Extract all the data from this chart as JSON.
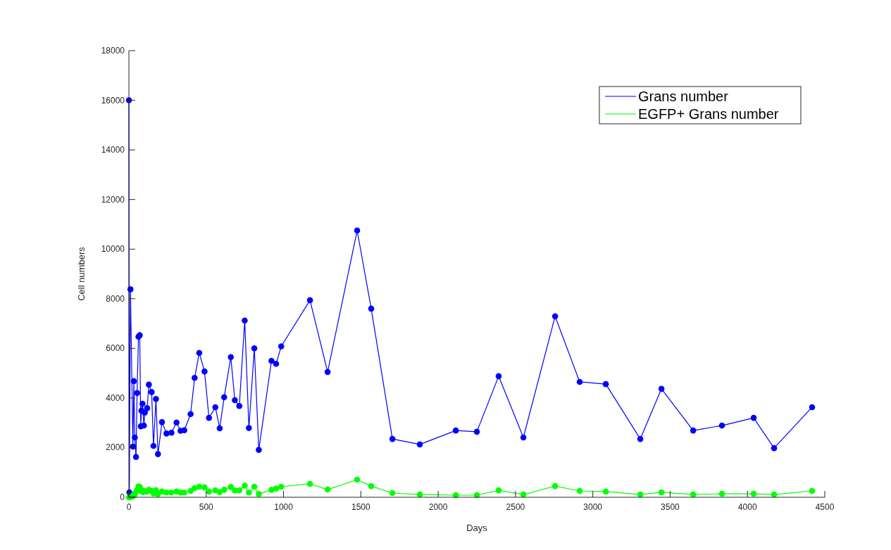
{
  "chart_data": {
    "type": "line",
    "xlabel": "Days",
    "ylabel": "Cell numbers",
    "xlim": [
      0,
      4500
    ],
    "xticks": [
      0,
      500,
      1000,
      1500,
      2000,
      2500,
      3000,
      3500,
      4000,
      4500
    ],
    "ylim": [
      0,
      18000
    ],
    "yticks": [
      0,
      2000,
      4000,
      6000,
      8000,
      10000,
      12000,
      14000,
      16000,
      18000
    ],
    "grid": false,
    "legend": "top right",
    "marker": "circle",
    "line_style": "solid",
    "x": [
      0,
      3,
      10,
      26,
      32,
      38,
      46,
      53,
      62,
      70,
      77,
      81,
      88,
      97,
      103,
      118,
      129,
      147,
      159,
      175,
      188,
      214,
      243,
      275,
      308,
      334,
      358,
      399,
      425,
      455,
      489,
      518,
      559,
      587,
      616,
      659,
      685,
      714,
      749,
      776,
      811,
      840,
      922,
      952,
      985,
      1171,
      1285,
      1476,
      1567,
      1704,
      1881,
      2114,
      2250,
      2391,
      2551,
      2756,
      2915,
      3084,
      3307,
      3444,
      3649,
      3835,
      4040,
      4172,
      4418
    ],
    "series": [
      {
        "name": "Grans number",
        "color": "#0000ff",
        "values": [
          16000,
          200,
          8380,
          2040,
          4680,
          2410,
          1625,
          4200,
          6470,
          6530,
          2860,
          3490,
          3770,
          2890,
          3410,
          3590,
          4540,
          4240,
          2070,
          3960,
          1740,
          3030,
          2570,
          2600,
          3010,
          2680,
          2700,
          3350,
          4810,
          5820,
          5070,
          3200,
          3630,
          2780,
          4030,
          5650,
          3910,
          3680,
          7120,
          2790,
          6000,
          1910,
          5500,
          5380,
          6080,
          7940,
          5050,
          10750,
          7600,
          2350,
          2130,
          2690,
          2640,
          4880,
          2410,
          7290,
          4650,
          4560,
          2350,
          4370,
          2690,
          2890,
          3200,
          1980,
          3630
        ]
      },
      {
        "name": "EGFP+ Grans number",
        "color": "#00ff00",
        "values": [
          0,
          0,
          0,
          40,
          110,
          110,
          210,
          300,
          440,
          420,
          255,
          300,
          210,
          255,
          230,
          230,
          300,
          255,
          160,
          280,
          130,
          230,
          190,
          190,
          230,
          190,
          190,
          255,
          370,
          425,
          400,
          230,
          275,
          210,
          300,
          415,
          275,
          275,
          470,
          190,
          425,
          130,
          300,
          350,
          425,
          540,
          310,
          710,
          450,
          170,
          110,
          85,
          85,
          280,
          110,
          450,
          255,
          230,
          110,
          200,
          110,
          140,
          140,
          110,
          255
        ]
      }
    ]
  }
}
